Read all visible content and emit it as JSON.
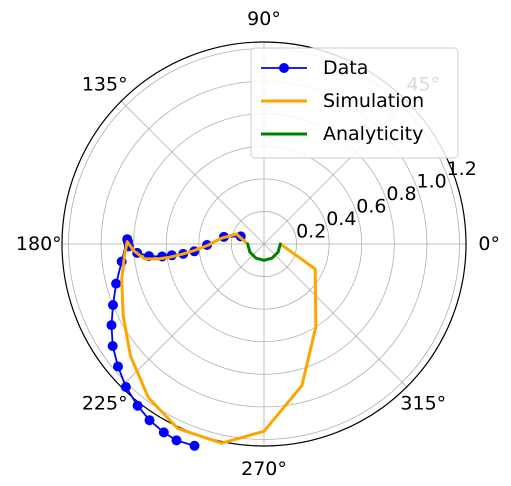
{
  "chart_data": {
    "type": "polar",
    "angle_unit": "degrees",
    "angle_ticks": [
      "0°",
      "45°",
      "90°",
      "135°",
      "180°",
      "225°",
      "270°",
      "315°"
    ],
    "angle_tick_values": [
      0,
      45,
      90,
      135,
      180,
      225,
      270,
      315
    ],
    "radial_ticks": [
      "0.2",
      "0.4",
      "0.6",
      "0.8",
      "1.0",
      "1.2"
    ],
    "radial_tick_values": [
      0.2,
      0.4,
      0.6,
      0.8,
      1.0,
      1.2
    ],
    "rlim": [
      0,
      1.24
    ],
    "grid": true,
    "legend": {
      "placement": "top-right",
      "entries": [
        "Data",
        "Simulation",
        "Analyticity"
      ]
    },
    "colors": {
      "Data": "#0000ff",
      "Simulation": "#ffa500",
      "Analyticity": "#008000"
    },
    "series": [
      {
        "name": "Data",
        "style": "line-markers",
        "points": [
          {
            "r": 0.15,
            "theta": 162
          },
          {
            "r": 0.25,
            "theta": 170
          },
          {
            "r": 0.35,
            "theta": 181
          },
          {
            "r": 0.43,
            "theta": 186
          },
          {
            "r": 0.5,
            "theta": 187
          },
          {
            "r": 0.57,
            "theta": 187
          },
          {
            "r": 0.63,
            "theta": 187
          },
          {
            "r": 0.71,
            "theta": 186
          },
          {
            "r": 0.78,
            "theta": 184
          },
          {
            "r": 0.83,
            "theta": 181
          },
          {
            "r": 0.835,
            "theta": 179
          },
          {
            "r": 0.84,
            "theta": 178
          },
          {
            "r": 0.88,
            "theta": 187
          },
          {
            "r": 0.94,
            "theta": 195
          },
          {
            "r": 1.0,
            "theta": 202
          },
          {
            "r": 1.06,
            "theta": 208
          },
          {
            "r": 1.12,
            "theta": 214
          },
          {
            "r": 1.17,
            "theta": 220
          },
          {
            "r": 1.22,
            "theta": 226
          },
          {
            "r": 1.26,
            "theta": 232
          },
          {
            "r": 1.29,
            "theta": 237
          },
          {
            "r": 1.31,
            "theta": 242
          },
          {
            "r": 1.32,
            "theta": 246
          },
          {
            "r": 1.31,
            "theta": 251
          }
        ]
      },
      {
        "name": "Simulation",
        "style": "line",
        "points": [
          {
            "r": 0.1,
            "theta": 0
          },
          {
            "r": 0.35,
            "theta": 334
          },
          {
            "r": 0.6,
            "theta": 302
          },
          {
            "r": 0.9,
            "theta": 285
          },
          {
            "r": 1.15,
            "theta": 270
          },
          {
            "r": 1.25,
            "theta": 258
          },
          {
            "r": 1.25,
            "theta": 245
          },
          {
            "r": 1.18,
            "theta": 233
          },
          {
            "r": 1.07,
            "theta": 220
          },
          {
            "r": 0.97,
            "theta": 207
          },
          {
            "r": 0.9,
            "theta": 194
          },
          {
            "r": 0.86,
            "theta": 185
          },
          {
            "r": 0.84,
            "theta": 179
          },
          {
            "r": 0.8,
            "theta": 183
          },
          {
            "r": 0.74,
            "theta": 187
          },
          {
            "r": 0.66,
            "theta": 188
          },
          {
            "r": 0.58,
            "theta": 188
          },
          {
            "r": 0.5,
            "theta": 187
          },
          {
            "r": 0.42,
            "theta": 185
          },
          {
            "r": 0.34,
            "theta": 181
          },
          {
            "r": 0.27,
            "theta": 173
          },
          {
            "r": 0.18,
            "theta": 160
          },
          {
            "r": 0.1,
            "theta": 180
          }
        ]
      },
      {
        "name": "Analyticity",
        "style": "line",
        "points": [
          {
            "r": 0.1,
            "theta": 0
          },
          {
            "r": 0.1,
            "theta": 330
          },
          {
            "r": 0.1,
            "theta": 300
          },
          {
            "r": 0.1,
            "theta": 270
          },
          {
            "r": 0.1,
            "theta": 240
          },
          {
            "r": 0.1,
            "theta": 210
          },
          {
            "r": 0.1,
            "theta": 180
          }
        ]
      }
    ]
  }
}
